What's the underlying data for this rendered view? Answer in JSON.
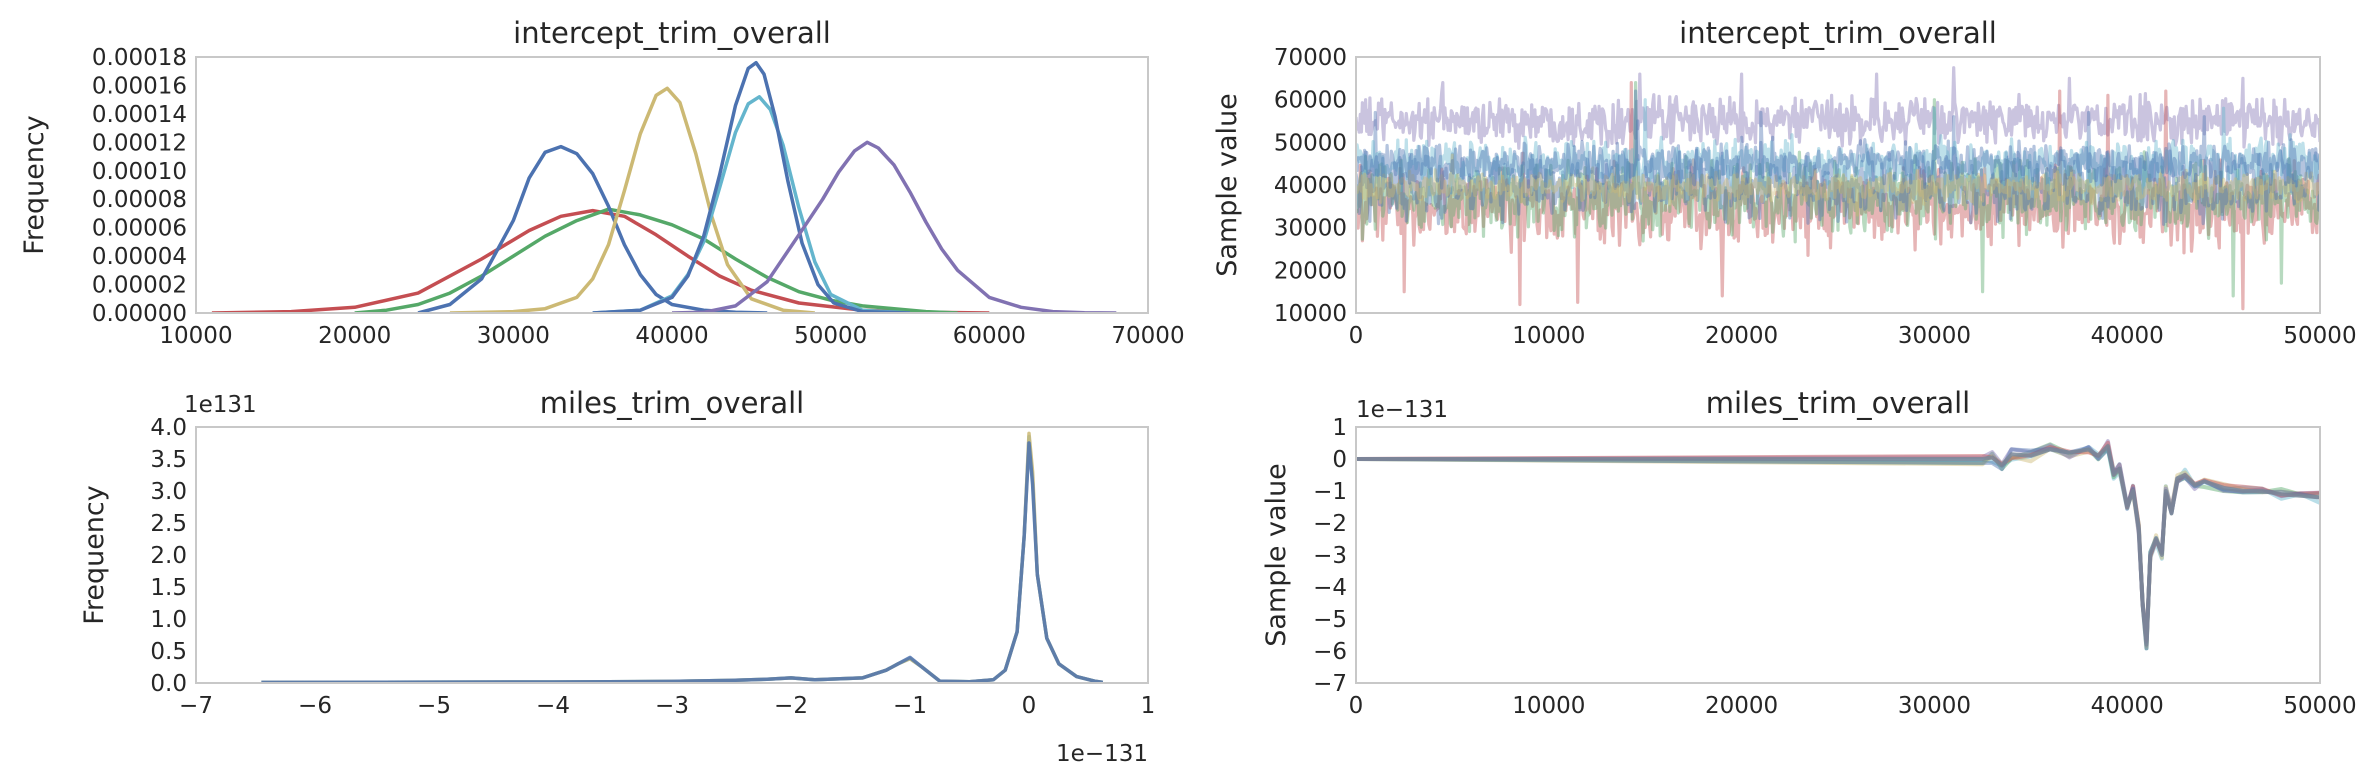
{
  "colors": {
    "blue": "#4c72b0",
    "green": "#55a868",
    "red": "#c44e52",
    "purple": "#8172b2",
    "yellow": "#ccb974",
    "cyan": "#64b5cd",
    "frame": "#c8c8c8",
    "text": "#262626"
  },
  "chart_data": [
    {
      "type": "line",
      "title": "intercept_trim_overall",
      "xlabel": "",
      "ylabel": "Frequency",
      "xlim": [
        10000,
        70000
      ],
      "ylim": [
        0,
        0.00018
      ],
      "xticks": [
        "10000",
        "20000",
        "30000",
        "40000",
        "50000",
        "60000",
        "70000"
      ],
      "yticks": [
        "0.00000",
        "0.00002",
        "0.00004",
        "0.00006",
        "0.00008",
        "0.00010",
        "0.00012",
        "0.00014",
        "0.00016",
        "0.00018"
      ],
      "grid": false,
      "series": [
        {
          "color": "red",
          "x": [
            11000,
            16000,
            20000,
            24000,
            28000,
            31000,
            33000,
            35000,
            37000,
            39000,
            41000,
            43000,
            45000,
            48000,
            52000,
            56000,
            60000
          ],
          "y": [
            0,
            1e-06,
            4e-06,
            1.4e-05,
            3.8e-05,
            5.8e-05,
            6.8e-05,
            7.2e-05,
            6.8e-05,
            5.5e-05,
            4e-05,
            2.6e-05,
            1.6e-05,
            7e-06,
            2e-06,
            5e-07,
            0
          ]
        },
        {
          "color": "green",
          "x": [
            20000,
            22000,
            24000,
            26000,
            28000,
            30000,
            32000,
            34000,
            36000,
            38000,
            40000,
            42000,
            44000,
            46000,
            48000,
            50000,
            52000,
            54000,
            56000,
            58000
          ],
          "y": [
            0,
            2e-06,
            6e-06,
            1.4e-05,
            2.6e-05,
            4e-05,
            5.4e-05,
            6.5e-05,
            7.3e-05,
            6.9e-05,
            6.2e-05,
            5.2e-05,
            3.8e-05,
            2.5e-05,
            1.5e-05,
            9e-06,
            5e-06,
            3e-06,
            1e-06,
            0
          ]
        },
        {
          "color": "blue",
          "x": [
            24000,
            26000,
            28000,
            30000,
            31000,
            32000,
            33000,
            34000,
            35000,
            36000,
            37000,
            38000,
            39000,
            40000,
            42000,
            44000,
            46000
          ],
          "y": [
            0,
            6e-06,
            2.4e-05,
            6.5e-05,
            9.5e-05,
            0.000113,
            0.000117,
            0.000112,
            9.8e-05,
            7.5e-05,
            4.8e-05,
            2.7e-05,
            1.3e-05,
            6e-06,
            2e-06,
            5e-07,
            0
          ]
        },
        {
          "color": "yellow",
          "x": [
            26000,
            30000,
            32000,
            34000,
            35000,
            36000,
            37000,
            38000,
            39000,
            39700,
            40500,
            41500,
            42500,
            43500,
            45000,
            47000,
            49000
          ],
          "y": [
            0,
            1e-06,
            3e-06,
            1.1e-05,
            2.4e-05,
            4.8e-05,
            8.6e-05,
            0.000126,
            0.000153,
            0.000158,
            0.000148,
            0.000112,
            6.8e-05,
            3.4e-05,
            1e-05,
            2e-06,
            0
          ]
        },
        {
          "color": "cyan",
          "x": [
            35000,
            38000,
            40000,
            41000,
            42000,
            43000,
            44000,
            44800,
            45500,
            46200,
            47000,
            48000,
            49000,
            50000,
            52000,
            55000
          ],
          "y": [
            0,
            2e-06,
            1.2e-05,
            2.7e-05,
            5e-05,
            8.8e-05,
            0.000127,
            0.000147,
            0.000152,
            0.000143,
            0.000118,
            7.4e-05,
            3.6e-05,
            1.3e-05,
            2e-06,
            0
          ]
        },
        {
          "color": "blue",
          "x": [
            35000,
            38000,
            40000,
            41000,
            42000,
            43000,
            44000,
            44800,
            45300,
            45800,
            46500,
            47300,
            48200,
            49200,
            50200,
            52000,
            55000
          ],
          "y": [
            0,
            2e-06,
            1.1e-05,
            2.6e-05,
            5.4e-05,
            9.7e-05,
            0.000146,
            0.000172,
            0.000176,
            0.000168,
            0.000138,
            9.3e-05,
            4.9e-05,
            2e-05,
            7e-06,
            1e-06,
            0
          ]
        },
        {
          "color": "purple",
          "x": [
            40000,
            42000,
            44000,
            46000,
            48000,
            49500,
            50500,
            51500,
            52300,
            53000,
            54000,
            55000,
            56000,
            57000,
            58000,
            60000,
            62000,
            64000,
            66000,
            68000
          ],
          "y": [
            0,
            5e-07,
            5e-06,
            2.2e-05,
            5.5e-05,
            8e-05,
            9.9e-05,
            0.000114,
            0.00012,
            0.000116,
            0.000104,
            8.5e-05,
            6.4e-05,
            4.5e-05,
            3e-05,
            1.1e-05,
            4e-06,
            1e-06,
            2e-07,
            0
          ]
        }
      ]
    },
    {
      "type": "line",
      "title": "intercept_trim_overall",
      "xlabel": "",
      "ylabel": "Sample value",
      "xlim": [
        0,
        50000
      ],
      "ylim": [
        10000,
        70000
      ],
      "xticks": [
        "0",
        "10000",
        "20000",
        "30000",
        "40000",
        "50000"
      ],
      "yticks": [
        "10000",
        "20000",
        "30000",
        "40000",
        "50000",
        "60000",
        "70000"
      ],
      "grid": false,
      "series": [
        {
          "color": "purple",
          "center": 55000,
          "spread": 4500,
          "spikes": [
            [
              4500,
              64000
            ],
            [
              14700,
              66000
            ],
            [
              20000,
              66000
            ],
            [
              27000,
              66000
            ],
            [
              31000,
              67500
            ],
            [
              37000,
              65000
            ],
            [
              46000,
              65000
            ]
          ]
        },
        {
          "color": "red",
          "center": 35000,
          "spread": 7500,
          "spikes": [
            [
              8500,
              12000
            ],
            [
              2500,
              15000
            ],
            [
              11500,
              12500
            ],
            [
              14300,
              64000
            ],
            [
              19000,
              14000
            ],
            [
              36500,
              62000
            ],
            [
              42000,
              62000
            ],
            [
              46000,
              11000
            ],
            [
              39000,
              61000
            ]
          ]
        },
        {
          "color": "green",
          "center": 37000,
          "spread": 7000,
          "spikes": [
            [
              14500,
              64000
            ],
            [
              32500,
              15000
            ],
            [
              48000,
              17000
            ],
            [
              30000,
              60000
            ],
            [
              45500,
              14000
            ]
          ]
        },
        {
          "color": "blue",
          "center": 40000,
          "spread": 6500,
          "spikes": [
            [
              1000,
              57000
            ],
            [
              14500,
              62000
            ],
            [
              21000,
              57000
            ],
            [
              31000,
              56000
            ],
            [
              38000,
              57000
            ]
          ]
        },
        {
          "color": "cyan",
          "center": 45000,
          "spread": 4500,
          "spikes": [
            [
              15000,
              60000
            ],
            [
              30000,
              58000
            ],
            [
              45000,
              58000
            ]
          ]
        },
        {
          "color": "yellow",
          "center": 39500,
          "spread": 2800,
          "spikes": [
            [
              5000,
              47000
            ],
            [
              26000,
              33000
            ]
          ]
        },
        {
          "color": "blue",
          "center": 45000,
          "spread": 4000,
          "spikes": [
            [
              14600,
              55000
            ],
            [
              44000,
              56000
            ]
          ]
        }
      ]
    },
    {
      "type": "line",
      "title": "miles_trim_overall",
      "xlabel": "",
      "ylabel": "Frequency",
      "y_offset_label": "1e131",
      "x_offset_label": "1e−131",
      "xlim": [
        -7,
        1
      ],
      "ylim": [
        0,
        4.0
      ],
      "xticks": [
        "−7",
        "−6",
        "−5",
        "−4",
        "−3",
        "−2",
        "−1",
        "0",
        "1"
      ],
      "yticks": [
        "0.0",
        "0.5",
        "1.0",
        "1.5",
        "2.0",
        "2.5",
        "3.0",
        "3.5",
        "4.0"
      ],
      "grid": false,
      "series": [
        {
          "color": "cyan",
          "x": [
            -6.45,
            -4,
            -3,
            -2.5,
            -2.2,
            -2.0,
            -1.8,
            -1.4,
            -1.2,
            -1.1,
            -1.0,
            -0.9,
            -0.75,
            -0.5,
            -0.3,
            -0.2,
            -0.1,
            -0.04,
            0.0,
            0.03,
            0.07,
            0.15,
            0.25,
            0.4,
            0.55,
            0.62
          ],
          "y": [
            0.01,
            0.015,
            0.025,
            0.04,
            0.06,
            0.08,
            0.05,
            0.08,
            0.2,
            0.3,
            0.38,
            0.25,
            0.03,
            0.02,
            0.05,
            0.2,
            0.8,
            2.3,
            3.85,
            3.2,
            1.7,
            0.7,
            0.3,
            0.1,
            0.03,
            0.01
          ]
        },
        {
          "color": "yellow",
          "x": [
            -6.45,
            -4,
            -3,
            -2.5,
            -2.2,
            -2.0,
            -1.8,
            -1.4,
            -1.2,
            -1.1,
            -1.0,
            -0.9,
            -0.75,
            -0.5,
            -0.3,
            -0.2,
            -0.1,
            -0.04,
            0.0,
            0.03,
            0.07,
            0.15,
            0.25,
            0.4,
            0.55,
            0.62
          ],
          "y": [
            0.01,
            0.015,
            0.025,
            0.04,
            0.06,
            0.08,
            0.05,
            0.08,
            0.2,
            0.3,
            0.38,
            0.25,
            0.03,
            0.02,
            0.05,
            0.2,
            0.8,
            2.3,
            3.9,
            3.3,
            1.7,
            0.7,
            0.3,
            0.1,
            0.03,
            0.01
          ]
        },
        {
          "color": "blue",
          "x": [
            -6.45,
            -4,
            -3,
            -2.5,
            -2.2,
            -2.0,
            -1.8,
            -1.4,
            -1.2,
            -1.1,
            -1.0,
            -0.9,
            -0.75,
            -0.5,
            -0.3,
            -0.2,
            -0.1,
            -0.04,
            0.0,
            0.03,
            0.07,
            0.15,
            0.25,
            0.4,
            0.55,
            0.62
          ],
          "y": [
            0.01,
            0.015,
            0.025,
            0.04,
            0.06,
            0.08,
            0.05,
            0.08,
            0.2,
            0.3,
            0.4,
            0.25,
            0.03,
            0.02,
            0.05,
            0.2,
            0.8,
            2.3,
            3.75,
            3.1,
            1.7,
            0.7,
            0.3,
            0.1,
            0.03,
            0.01
          ]
        }
      ]
    },
    {
      "type": "line",
      "title": "miles_trim_overall",
      "xlabel": "",
      "ylabel": "Sample value",
      "y_offset_label": "1e−131",
      "xlim": [
        0,
        50000
      ],
      "ylim": [
        -7,
        1
      ],
      "xticks": [
        "0",
        "10000",
        "20000",
        "30000",
        "40000",
        "50000"
      ],
      "yticks": [
        "−7",
        "−6",
        "−5",
        "−4",
        "−3",
        "−2",
        "−1",
        "0",
        "1"
      ],
      "grid": false,
      "series": [
        {
          "color": "blue",
          "x": [
            0,
            32500,
            33000,
            33500,
            34000,
            35000,
            36000,
            37000,
            38000,
            38500,
            39000,
            39300,
            39600,
            40000,
            40300,
            40600,
            40800,
            41000,
            41200,
            41500,
            41800,
            42000,
            42300,
            42600,
            43000,
            43500,
            44000,
            45000,
            46000,
            47000,
            48000,
            49000,
            50000
          ],
          "y": [
            0,
            0,
            0.05,
            -0.2,
            0.15,
            0.1,
            0.3,
            0.2,
            0.3,
            0.1,
            0.4,
            -0.5,
            -0.3,
            -1.5,
            -1.0,
            -2.2,
            -4.5,
            -5.8,
            -3.0,
            -2.5,
            -3.0,
            -1.0,
            -1.7,
            -0.6,
            -0.5,
            -0.8,
            -0.7,
            -0.9,
            -1.0,
            -1.0,
            -1.1,
            -1.15,
            -1.2
          ]
        }
      ]
    }
  ]
}
